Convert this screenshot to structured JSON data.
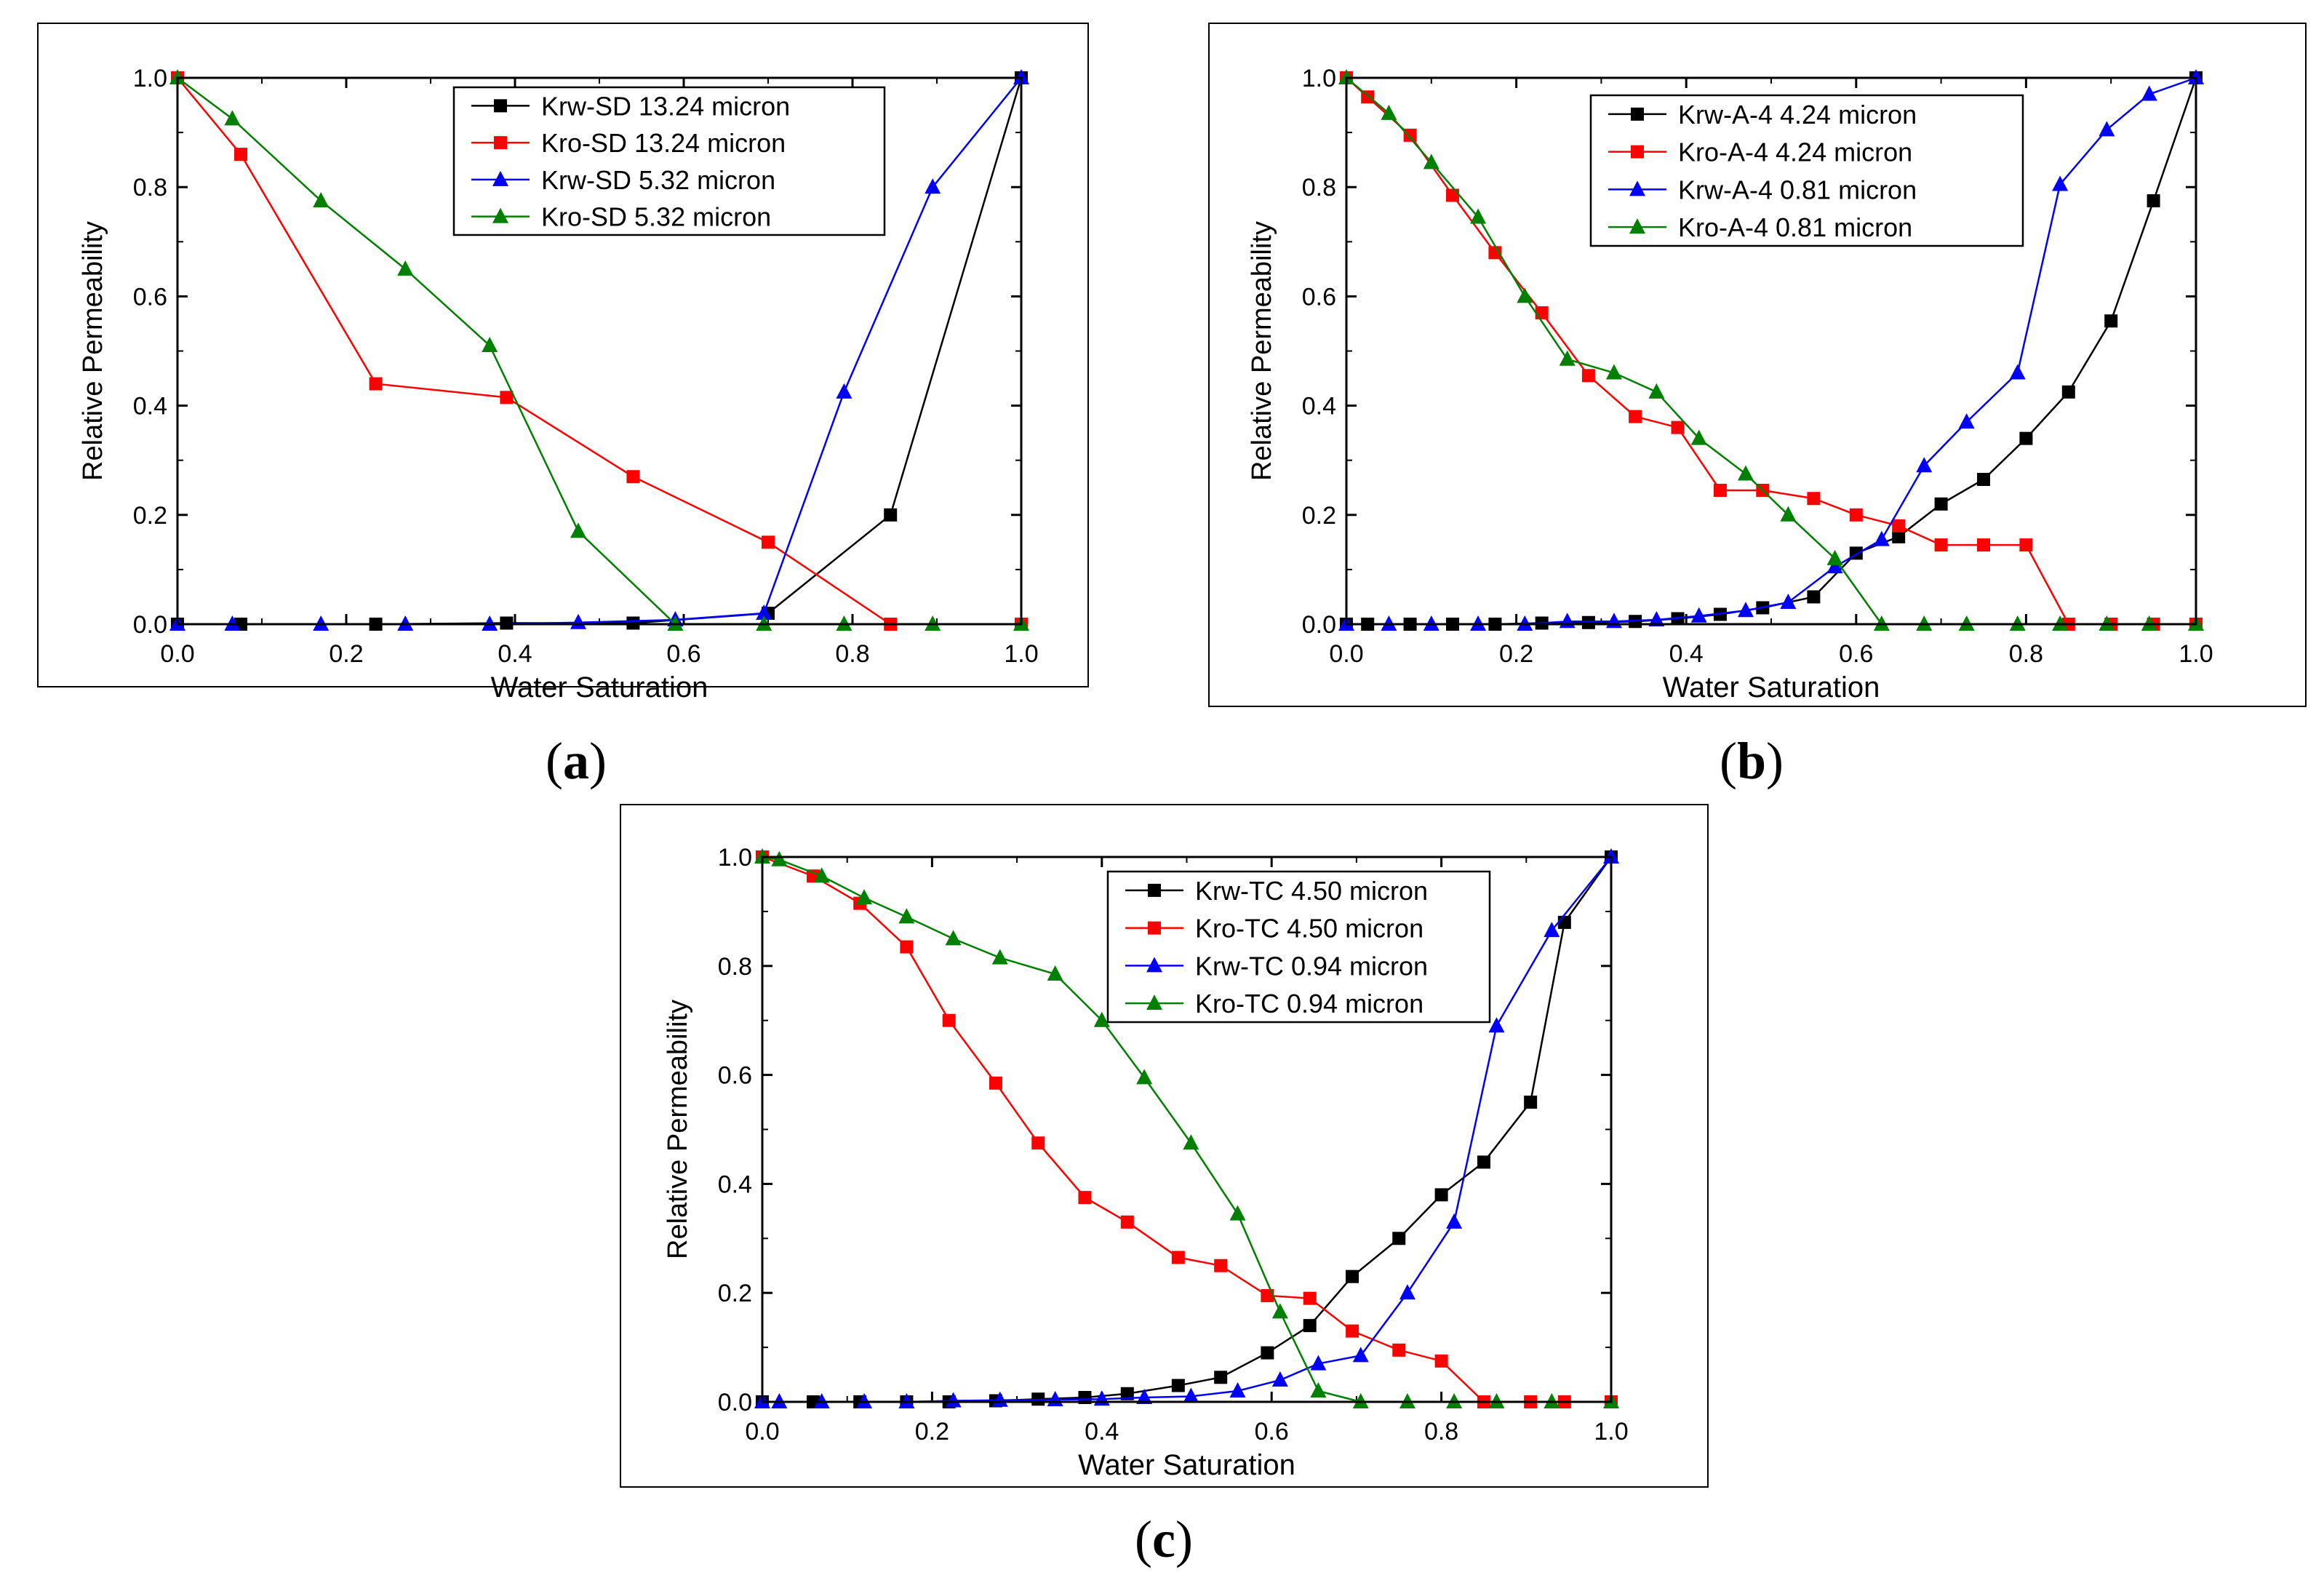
{
  "figure": {
    "panel_labels": [
      {
        "open": "(",
        "letter": "a",
        "close": ")"
      },
      {
        "open": "(",
        "letter": "b",
        "close": ")"
      },
      {
        "open": "(",
        "letter": "c",
        "close": ")"
      }
    ]
  },
  "chart_data": [
    {
      "type": "line",
      "title": "",
      "xlabel": "Water Saturation",
      "ylabel": "Relative Permeability",
      "xlim": [
        0.0,
        1.0
      ],
      "ylim": [
        0.0,
        1.0
      ],
      "xticks": [
        "0.0",
        "0.2",
        "0.4",
        "0.6",
        "0.8",
        "1.0"
      ],
      "yticks": [
        "0.0",
        "0.2",
        "0.4",
        "0.6",
        "0.8",
        "1.0"
      ],
      "legend_position": "top-right",
      "series": [
        {
          "name": "Krw-SD 13.24 micron",
          "color": "#000000",
          "marker": "square",
          "x": [
            0.0,
            0.075,
            0.235,
            0.39,
            0.54,
            0.7,
            0.845,
            1.0
          ],
          "y": [
            0.0,
            0.0,
            0.0,
            0.002,
            0.002,
            0.02,
            0.2,
            1.0
          ]
        },
        {
          "name": "Kro-SD 13.24 micron",
          "color": "#ff0000",
          "marker": "square",
          "x": [
            0.0,
            0.075,
            0.235,
            0.39,
            0.54,
            0.7,
            0.845,
            1.0
          ],
          "y": [
            1.0,
            0.86,
            0.44,
            0.415,
            0.27,
            0.15,
            0.0,
            0.0
          ]
        },
        {
          "name": "Krw-SD 5.32 micron",
          "color": "#0000ff",
          "marker": "triangle",
          "x": [
            0.0,
            0.065,
            0.17,
            0.27,
            0.37,
            0.475,
            0.59,
            0.695,
            0.79,
            0.895,
            1.0
          ],
          "y": [
            0.0,
            0.0,
            0.0,
            0.0,
            0.0,
            0.003,
            0.008,
            0.02,
            0.425,
            0.8,
            1.0
          ]
        },
        {
          "name": "Kro-SD 5.32 micron",
          "color": "#008000",
          "marker": "triangle",
          "x": [
            0.0,
            0.065,
            0.17,
            0.27,
            0.37,
            0.475,
            0.59,
            0.695,
            0.79,
            0.895,
            1.0
          ],
          "y": [
            1.0,
            0.925,
            0.775,
            0.65,
            0.51,
            0.17,
            0.0,
            0.0,
            0.0,
            0.0,
            0.0
          ]
        }
      ]
    },
    {
      "type": "line",
      "title": "",
      "xlabel": "Water Saturation",
      "ylabel": "Relative Permeability",
      "xlim": [
        0.0,
        1.0
      ],
      "ylim": [
        0.0,
        1.0
      ],
      "xticks": [
        "0.0",
        "0.2",
        "0.4",
        "0.6",
        "0.8",
        "1.0"
      ],
      "yticks": [
        "0.0",
        "0.2",
        "0.4",
        "0.6",
        "0.8",
        "1.0"
      ],
      "legend_position": "top-right",
      "series": [
        {
          "name": "Krw-A-4 4.24 micron",
          "color": "#000000",
          "marker": "square",
          "x": [
            0.0,
            0.025,
            0.075,
            0.125,
            0.175,
            0.23,
            0.285,
            0.34,
            0.39,
            0.44,
            0.49,
            0.55,
            0.6,
            0.65,
            0.7,
            0.75,
            0.8,
            0.85,
            0.9,
            0.95,
            1.0
          ],
          "y": [
            0.0,
            0.0,
            0.0,
            0.0,
            0.0,
            0.002,
            0.003,
            0.005,
            0.01,
            0.018,
            0.03,
            0.05,
            0.13,
            0.16,
            0.22,
            0.265,
            0.34,
            0.425,
            0.555,
            0.775,
            1.0
          ]
        },
        {
          "name": "Kro-A-4 4.24 micron",
          "color": "#ff0000",
          "marker": "square",
          "x": [
            0.0,
            0.025,
            0.075,
            0.125,
            0.175,
            0.23,
            0.285,
            0.34,
            0.39,
            0.44,
            0.49,
            0.55,
            0.6,
            0.65,
            0.7,
            0.75,
            0.8,
            0.85,
            0.9,
            0.95,
            1.0
          ],
          "y": [
            1.0,
            0.965,
            0.895,
            0.785,
            0.68,
            0.57,
            0.455,
            0.38,
            0.36,
            0.245,
            0.245,
            0.23,
            0.2,
            0.18,
            0.145,
            0.145,
            0.145,
            0.0,
            0.0,
            0.0,
            0.0
          ]
        },
        {
          "name": "Krw-A-4 0.81 micron",
          "color": "#0000ff",
          "marker": "triangle",
          "x": [
            0.0,
            0.05,
            0.1,
            0.155,
            0.21,
            0.26,
            0.315,
            0.365,
            0.415,
            0.47,
            0.52,
            0.575,
            0.63,
            0.68,
            0.73,
            0.79,
            0.84,
            0.895,
            0.945,
            1.0
          ],
          "y": [
            0.0,
            0.0,
            0.0,
            0.0,
            0.0,
            0.005,
            0.005,
            0.008,
            0.015,
            0.025,
            0.04,
            0.105,
            0.155,
            0.29,
            0.37,
            0.46,
            0.805,
            0.905,
            0.97,
            1.0
          ]
        },
        {
          "name": "Kro-A-4 0.81 micron",
          "color": "#008000",
          "marker": "triangle",
          "x": [
            0.0,
            0.05,
            0.1,
            0.155,
            0.21,
            0.26,
            0.315,
            0.365,
            0.415,
            0.47,
            0.52,
            0.575,
            0.63,
            0.68,
            0.73,
            0.79,
            0.84,
            0.895,
            0.945,
            1.0
          ],
          "y": [
            1.0,
            0.935,
            0.845,
            0.745,
            0.6,
            0.485,
            0.46,
            0.425,
            0.34,
            0.275,
            0.2,
            0.12,
            0.0,
            0.0,
            0.0,
            0.0,
            0.0,
            0.0,
            0.0,
            0.0
          ]
        }
      ]
    },
    {
      "type": "line",
      "title": "",
      "xlabel": "Water Saturation",
      "ylabel": "Relative Permeability",
      "xlim": [
        0.0,
        1.0
      ],
      "ylim": [
        0.0,
        1.0
      ],
      "xticks": [
        "0.0",
        "0.2",
        "0.4",
        "0.6",
        "0.8",
        "1.0"
      ],
      "yticks": [
        "0.0",
        "0.2",
        "0.4",
        "0.6",
        "0.8",
        "1.0"
      ],
      "legend_position": "top-right",
      "series": [
        {
          "name": "Krw-TC 4.50 micron",
          "color": "#000000",
          "marker": "square",
          "x": [
            0.0,
            0.06,
            0.115,
            0.17,
            0.22,
            0.275,
            0.325,
            0.38,
            0.43,
            0.49,
            0.54,
            0.595,
            0.645,
            0.695,
            0.75,
            0.8,
            0.85,
            0.905,
            0.945,
            1.0
          ],
          "y": [
            0.0,
            0.0,
            0.0,
            0.0,
            0.0,
            0.002,
            0.005,
            0.008,
            0.015,
            0.03,
            0.045,
            0.09,
            0.14,
            0.23,
            0.3,
            0.38,
            0.44,
            0.55,
            0.88,
            1.0
          ]
        },
        {
          "name": "Kro-TC 4.50 micron",
          "color": "#ff0000",
          "marker": "square",
          "x": [
            0.0,
            0.06,
            0.115,
            0.17,
            0.22,
            0.275,
            0.325,
            0.38,
            0.43,
            0.49,
            0.54,
            0.595,
            0.645,
            0.695,
            0.75,
            0.8,
            0.85,
            0.905,
            0.945,
            1.0
          ],
          "y": [
            1.0,
            0.965,
            0.915,
            0.835,
            0.7,
            0.585,
            0.475,
            0.375,
            0.33,
            0.265,
            0.25,
            0.195,
            0.19,
            0.13,
            0.095,
            0.075,
            0.0,
            0.0,
            0.0,
            0.0
          ]
        },
        {
          "name": "Krw-TC 0.94 micron",
          "color": "#0000ff",
          "marker": "triangle",
          "x": [
            0.0,
            0.02,
            0.07,
            0.12,
            0.17,
            0.225,
            0.28,
            0.345,
            0.4,
            0.45,
            0.505,
            0.56,
            0.61,
            0.655,
            0.705,
            0.76,
            0.815,
            0.865,
            0.93,
            1.0
          ],
          "y": [
            0.0,
            0.0,
            0.0,
            0.0,
            0.0,
            0.002,
            0.003,
            0.004,
            0.005,
            0.008,
            0.01,
            0.02,
            0.04,
            0.07,
            0.085,
            0.2,
            0.33,
            0.69,
            0.865,
            1.0
          ]
        },
        {
          "name": "Kro-TC 0.94 micron",
          "color": "#008000",
          "marker": "triangle",
          "x": [
            0.0,
            0.02,
            0.07,
            0.12,
            0.17,
            0.225,
            0.28,
            0.345,
            0.4,
            0.45,
            0.505,
            0.56,
            0.61,
            0.655,
            0.705,
            0.76,
            0.815,
            0.865,
            0.93,
            1.0
          ],
          "y": [
            1.0,
            0.995,
            0.965,
            0.925,
            0.89,
            0.85,
            0.815,
            0.785,
            0.7,
            0.595,
            0.475,
            0.345,
            0.165,
            0.02,
            0.0,
            0.0,
            0.0,
            0.0,
            0.0,
            0.0
          ]
        }
      ]
    }
  ]
}
